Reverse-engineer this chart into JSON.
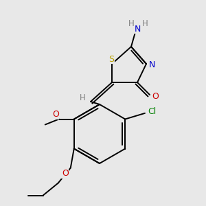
{
  "background_color": "#e8e8e8",
  "label_colors": {
    "S": "#b8a000",
    "N": "#0000cc",
    "H": "#808080",
    "O": "#cc0000",
    "Cl": "#008000",
    "C": "#000000"
  },
  "figsize": [
    3.0,
    3.0
  ],
  "dpi": 100
}
